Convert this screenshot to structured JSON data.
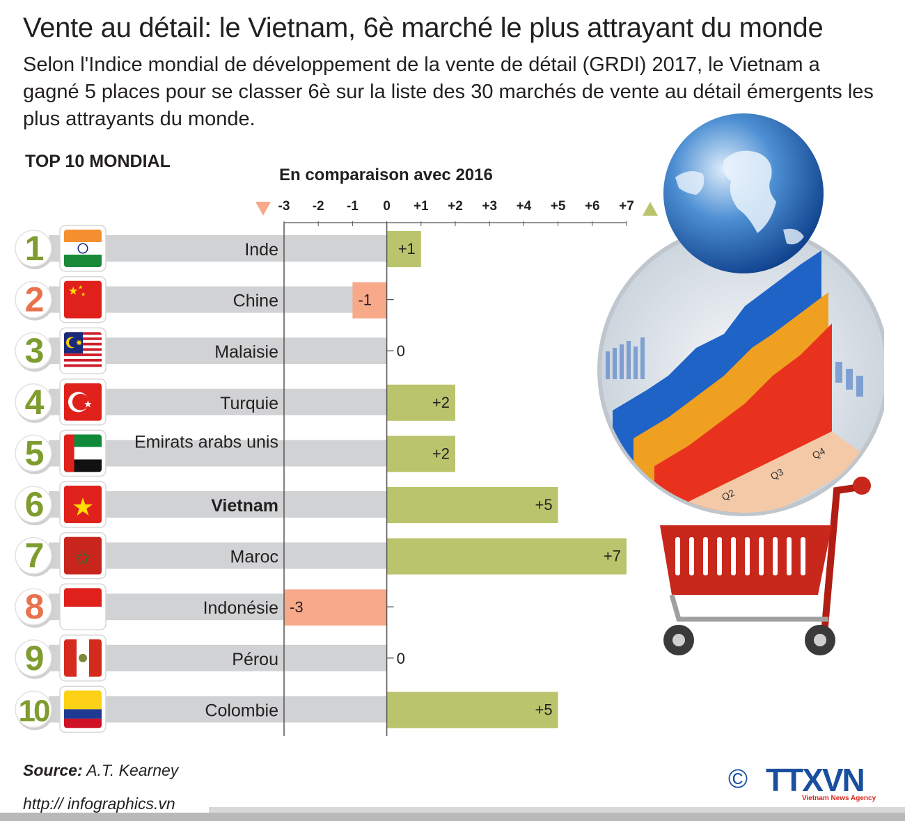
{
  "title": "Vente au détail: le Vietnam, 6è marché le plus attrayant du monde",
  "subtitle": "Selon l'Indice mondial de développement de la vente de détail (GRDI) 2017, le Vietnam a gagné 5 places pour se classer 6è sur la liste des 30 marchés de vente au détail émergents les plus attrayants du monde.",
  "section_label": "TOP 10 MONDIAL",
  "comparison_label": "En comparaison avec 2016",
  "source_label": "Source:",
  "source_value": "A.T. Kearney",
  "url": "http:// infographics.vn",
  "logo_text": "TTXVN",
  "logo_sub": "Vietnam News Agency",
  "copyright_symbol": "©",
  "colors": {
    "positive": "#bac46d",
    "negative": "#f7a98a",
    "row_band": "#d1d2d4",
    "rank_green": "#7f9c2f",
    "rank_orange": "#e9714b"
  },
  "chart_data": {
    "type": "bar",
    "orientation": "horizontal",
    "x_ticks": [
      "-3",
      "-2",
      "-1",
      "0",
      "+1",
      "+2",
      "+3",
      "+4",
      "+5",
      "+6",
      "+7"
    ],
    "xlim": [
      -3,
      7
    ],
    "categories": [
      "Inde",
      "Chine",
      "Malaisie",
      "Turquie",
      "Emirats arabs unis",
      "Vietnam",
      "Maroc",
      "Indonésie",
      "Pérou",
      "Colombie"
    ],
    "ranks": [
      "1",
      "2",
      "3",
      "4",
      "5",
      "6",
      "7",
      "8",
      "9",
      "10"
    ],
    "values": [
      1,
      -1,
      0,
      2,
      2,
      5,
      7,
      -3,
      0,
      5
    ],
    "value_labels": [
      "+1",
      "-1",
      "0",
      "+2",
      "+2",
      "+5",
      "+7",
      "-3",
      "0",
      "+5"
    ],
    "flags": [
      "india-flag",
      "china-flag",
      "malaysia-flag",
      "turkey-flag",
      "uae-flag",
      "vietnam-flag",
      "morocco-flag",
      "indonesia-flag",
      "peru-flag",
      "colombia-flag"
    ],
    "highlight": "Vietnam"
  }
}
